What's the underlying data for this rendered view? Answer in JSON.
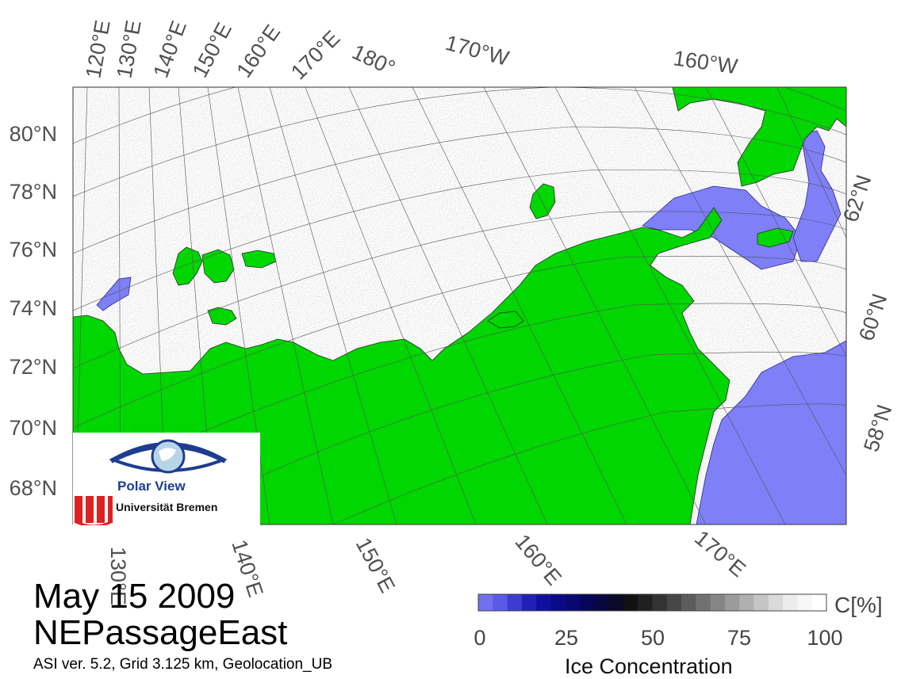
{
  "map": {
    "date": "May 15 2009",
    "region": "NEPassageEast",
    "info": "ASI ver. 5.2,  Grid 3.125 km, Geolocation_UB",
    "top_longitudes": [
      "120°E",
      "130°E",
      "140°E",
      "150°E",
      "160°E",
      "170°E",
      "180°",
      "170°W",
      "160°W"
    ],
    "bottom_longitudes": [
      "130°E",
      "140°E",
      "150°E",
      "160°E",
      "170°E"
    ],
    "left_latitudes": [
      "80°N",
      "78°N",
      "76°N",
      "74°N",
      "72°N",
      "70°N",
      "68°N"
    ],
    "right_latitudes": [
      "62°N",
      "60°N",
      "58°N"
    ],
    "colors": {
      "land": "#00d600",
      "open_water": "#7f7ff8",
      "ice": "#ffffff"
    }
  },
  "logo": {
    "name": "Polar View",
    "org": "Universität Bremen",
    "icon": "eye-globe-icon",
    "org_icon": "university-bremen-logo"
  },
  "colorbar": {
    "title": "Ice Concentration",
    "unit": "C[%]",
    "ticks": [
      "0",
      "25",
      "50",
      "75",
      "100"
    ],
    "colors": [
      "#7070f0",
      "#5a5ae8",
      "#3c3cd0",
      "#2020b8",
      "#1010a0",
      "#0a0a88",
      "#080870",
      "#060658",
      "#080840",
      "#0a0a28",
      "#111111",
      "#202020",
      "#333333",
      "#474747",
      "#5c5c5c",
      "#717171",
      "#868686",
      "#9b9b9b",
      "#b0b0b0",
      "#c5c5c5",
      "#dadada",
      "#ececec",
      "#f6f6f6",
      "#ffffff"
    ]
  }
}
